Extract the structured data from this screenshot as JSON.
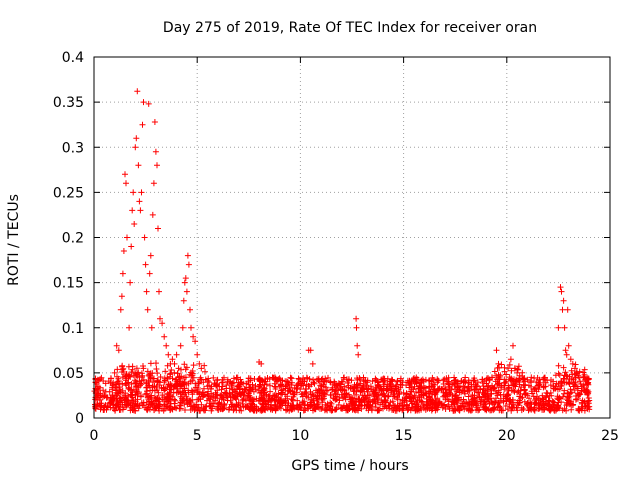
{
  "chart_data": {
    "type": "scatter",
    "title": "Day 275 of 2019, Rate Of TEC Index for receiver oran",
    "xlabel": "GPS time / hours",
    "ylabel": "ROTI / TECUs",
    "xlim": [
      0,
      25
    ],
    "ylim": [
      0,
      0.4
    ],
    "xticks": [
      0,
      5,
      10,
      15,
      20,
      25
    ],
    "yticks": [
      0,
      0.05,
      0.1,
      0.15,
      0.2,
      0.25,
      0.3,
      0.35,
      0.4
    ],
    "xtick_labels": [
      "0",
      "5",
      "10",
      "15",
      "20",
      "25"
    ],
    "ytick_labels": [
      "0",
      "0.05",
      "0.1",
      "0.15",
      "0.2",
      "0.25",
      "0.3",
      "0.35",
      "0.4"
    ],
    "grid": true,
    "marker": "+",
    "marker_color": "#ff0000",
    "baseline_noise": {
      "x_range": [
        0,
        24
      ],
      "y_range": [
        0.008,
        0.045
      ],
      "count": 2400
    },
    "series": [
      {
        "name": "ROTI",
        "points": [
          [
            0.05,
            0.015
          ],
          [
            0.1,
            0.028
          ],
          [
            0.15,
            0.022
          ],
          [
            0.2,
            0.031
          ],
          [
            0.3,
            0.02
          ],
          [
            1.0,
            0.05
          ],
          [
            1.1,
            0.08
          ],
          [
            1.2,
            0.075
          ],
          [
            1.3,
            0.12
          ],
          [
            1.35,
            0.135
          ],
          [
            1.4,
            0.16
          ],
          [
            1.45,
            0.185
          ],
          [
            1.5,
            0.27
          ],
          [
            1.55,
            0.26
          ],
          [
            1.6,
            0.2
          ],
          [
            1.7,
            0.1
          ],
          [
            1.75,
            0.15
          ],
          [
            1.8,
            0.19
          ],
          [
            1.85,
            0.23
          ],
          [
            1.9,
            0.25
          ],
          [
            1.95,
            0.215
          ],
          [
            2.0,
            0.3
          ],
          [
            2.05,
            0.31
          ],
          [
            2.1,
            0.362
          ],
          [
            2.15,
            0.28
          ],
          [
            2.2,
            0.24
          ],
          [
            2.25,
            0.23
          ],
          [
            2.3,
            0.25
          ],
          [
            2.35,
            0.325
          ],
          [
            2.4,
            0.35
          ],
          [
            2.45,
            0.2
          ],
          [
            2.5,
            0.17
          ],
          [
            2.55,
            0.14
          ],
          [
            2.6,
            0.12
          ],
          [
            2.65,
            0.348
          ],
          [
            2.7,
            0.16
          ],
          [
            2.75,
            0.18
          ],
          [
            2.8,
            0.1
          ],
          [
            2.85,
            0.225
          ],
          [
            2.9,
            0.26
          ],
          [
            2.95,
            0.328
          ],
          [
            3.0,
            0.295
          ],
          [
            3.05,
            0.28
          ],
          [
            3.1,
            0.21
          ],
          [
            3.15,
            0.14
          ],
          [
            3.2,
            0.11
          ],
          [
            3.3,
            0.105
          ],
          [
            3.4,
            0.09
          ],
          [
            3.5,
            0.08
          ],
          [
            3.6,
            0.07
          ],
          [
            3.7,
            0.06
          ],
          [
            3.8,
            0.065
          ],
          [
            3.9,
            0.06
          ],
          [
            4.0,
            0.07
          ],
          [
            4.1,
            0.055
          ],
          [
            4.2,
            0.08
          ],
          [
            4.3,
            0.1
          ],
          [
            4.35,
            0.13
          ],
          [
            4.4,
            0.15
          ],
          [
            4.45,
            0.155
          ],
          [
            4.5,
            0.14
          ],
          [
            4.55,
            0.18
          ],
          [
            4.6,
            0.17
          ],
          [
            4.65,
            0.12
          ],
          [
            4.7,
            0.1
          ],
          [
            4.8,
            0.09
          ],
          [
            4.9,
            0.085
          ],
          [
            5.0,
            0.07
          ],
          [
            5.1,
            0.06
          ],
          [
            5.2,
            0.055
          ],
          [
            8.0,
            0.062
          ],
          [
            8.1,
            0.06
          ],
          [
            10.4,
            0.075
          ],
          [
            10.5,
            0.075
          ],
          [
            10.6,
            0.06
          ],
          [
            12.7,
            0.11
          ],
          [
            12.72,
            0.1
          ],
          [
            12.75,
            0.08
          ],
          [
            12.8,
            0.07
          ],
          [
            19.5,
            0.075
          ],
          [
            19.6,
            0.06
          ],
          [
            20.2,
            0.065
          ],
          [
            20.3,
            0.08
          ],
          [
            20.4,
            0.055
          ],
          [
            20.5,
            0.05
          ],
          [
            22.5,
            0.1
          ],
          [
            22.6,
            0.145
          ],
          [
            22.65,
            0.14
          ],
          [
            22.7,
            0.12
          ],
          [
            22.75,
            0.13
          ],
          [
            22.8,
            0.1
          ],
          [
            22.85,
            0.075
          ],
          [
            22.9,
            0.07
          ],
          [
            22.95,
            0.12
          ],
          [
            23.0,
            0.08
          ],
          [
            23.1,
            0.065
          ],
          [
            23.2,
            0.06
          ],
          [
            23.3,
            0.055
          ],
          [
            23.4,
            0.05
          ],
          [
            23.5,
            0.045
          ]
        ]
      }
    ]
  }
}
